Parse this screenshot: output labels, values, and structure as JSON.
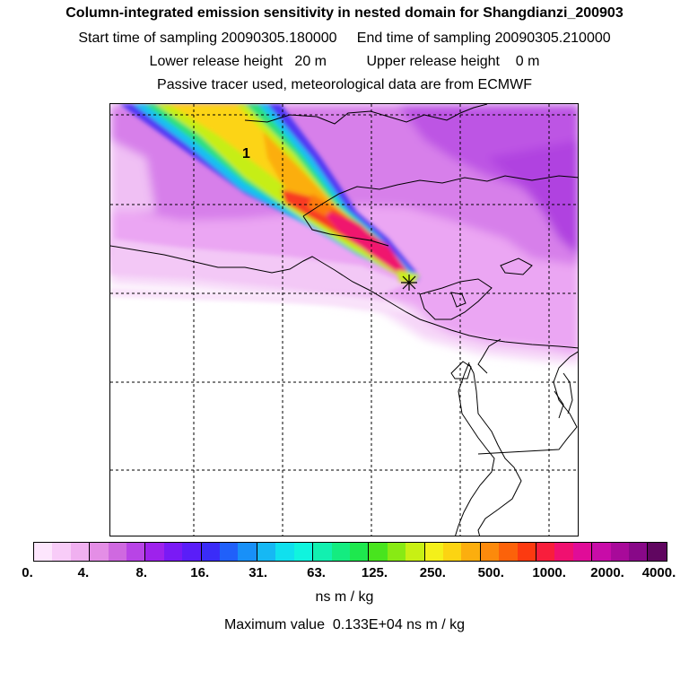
{
  "header": {
    "title": "Column-integrated emission sensitivity in nested domain for Shangdianzi_200903",
    "line2": "Start time of sampling 20090305.180000     End time of sampling 20090305.210000",
    "line3": "Lower release height   20 m          Upper release height    0 m",
    "line4": "Passive tracer used, meteorological data are from ECMWF"
  },
  "map": {
    "contour_label": "1",
    "release_marker": "asterisk-marker"
  },
  "colorbar": {
    "colors": [
      "#fde6fd",
      "#f8ccf8",
      "#f0b0f0",
      "#e48ee6",
      "#cf69e0",
      "#b844e6",
      "#9e22ec",
      "#7a1af5",
      "#5a1ef8",
      "#3a2cf8",
      "#2060fa",
      "#1890f8",
      "#16b8f4",
      "#10e0ee",
      "#10f4de",
      "#12f0b0",
      "#14ec80",
      "#1ee84e",
      "#48e41e",
      "#88ea14",
      "#c8f014",
      "#f4f01a",
      "#fcd412",
      "#fcae0e",
      "#fc8a0c",
      "#fc620a",
      "#fc3a10",
      "#f81e3c",
      "#f01070",
      "#e00c98",
      "#c80ca8",
      "#a80a9a",
      "#880888",
      "#600660"
    ],
    "labels": [
      "0.",
      "4.",
      "8.",
      "16.",
      "31.",
      "63.",
      "125.",
      "250.",
      "500.",
      "1000.",
      "2000.",
      "4000."
    ],
    "units": "ns m / kg"
  },
  "footer": {
    "max_value_text": "Maximum value  0.133E+04 ns m / kg"
  }
}
